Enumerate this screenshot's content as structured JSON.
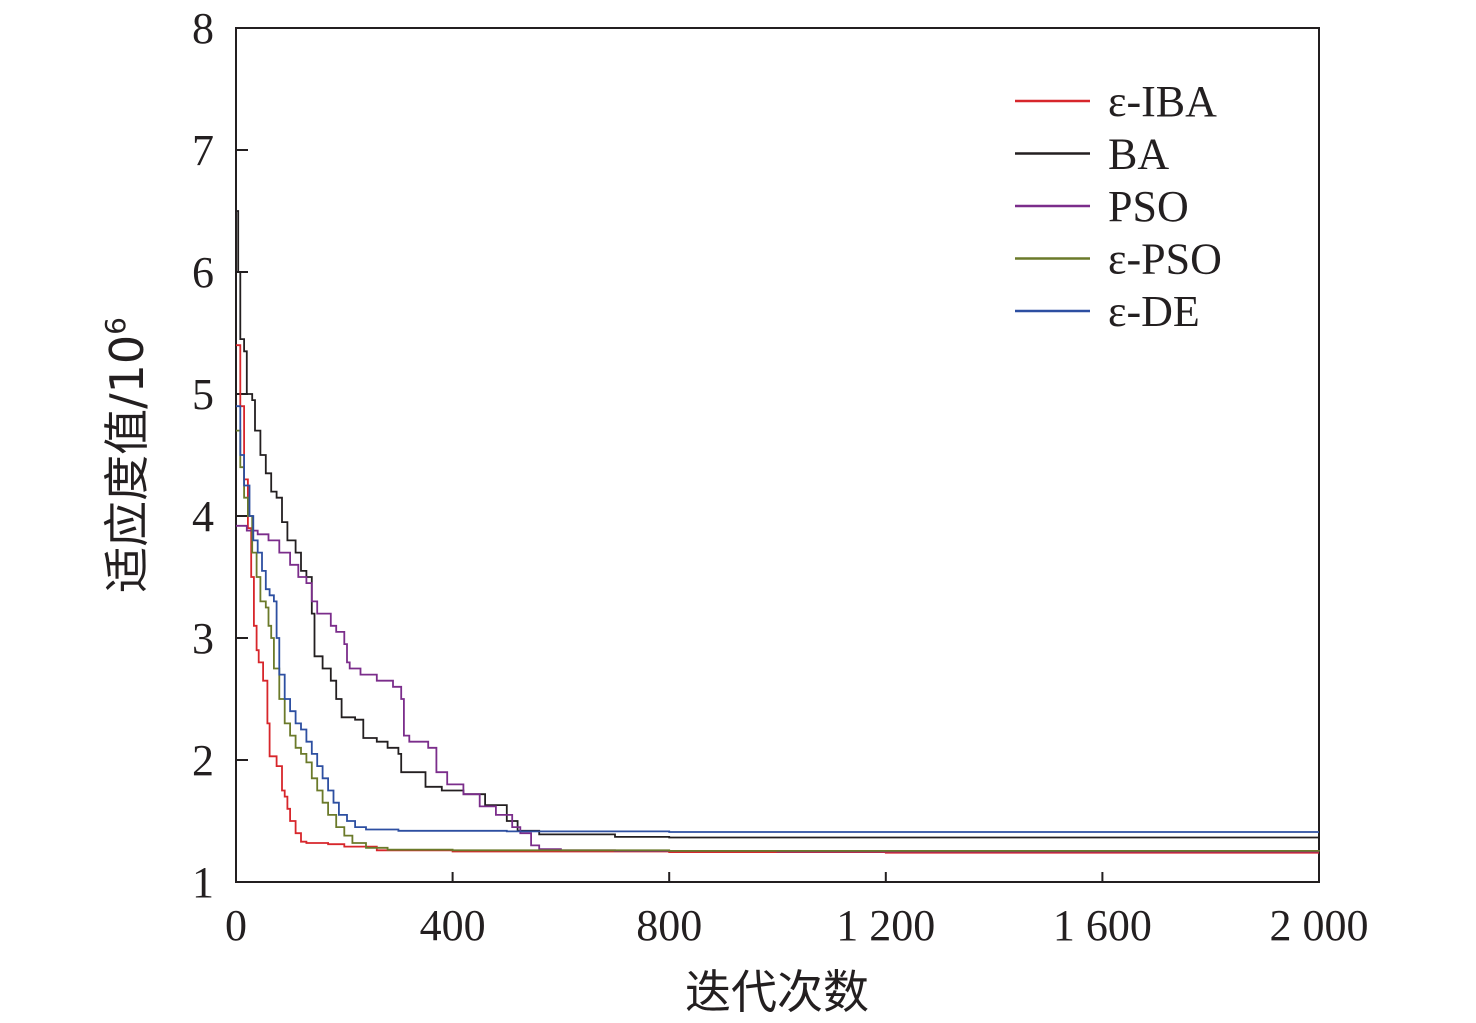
{
  "chart_data": {
    "type": "line",
    "title": "",
    "xlabel": "迭代次数",
    "ylabel": "适应度值/10",
    "ylabel_sup": "6",
    "xlim": [
      0,
      2000
    ],
    "ylim": [
      1,
      8
    ],
    "xticks": [
      0,
      400,
      800,
      1200,
      1600,
      2000
    ],
    "xtick_labels": [
      "0",
      "400",
      "800",
      "1 200",
      "1 600",
      "2 000"
    ],
    "yticks": [
      1,
      2,
      3,
      4,
      5,
      6,
      7,
      8
    ],
    "ytick_labels": [
      "1",
      "2",
      "3",
      "4",
      "5",
      "6",
      "7",
      "8"
    ],
    "grid": false,
    "legend_position": "top-right",
    "series": [
      {
        "name": "ε-IBA",
        "color": "#d7262b",
        "points": [
          [
            0,
            5.4
          ],
          [
            8,
            4.9
          ],
          [
            15,
            4.3
          ],
          [
            22,
            3.9
          ],
          [
            28,
            3.5
          ],
          [
            33,
            3.1
          ],
          [
            38,
            2.9
          ],
          [
            42,
            2.8
          ],
          [
            50,
            2.65
          ],
          [
            58,
            2.3
          ],
          [
            62,
            2.03
          ],
          [
            75,
            1.95
          ],
          [
            85,
            1.75
          ],
          [
            90,
            1.7
          ],
          [
            95,
            1.6
          ],
          [
            100,
            1.5
          ],
          [
            110,
            1.4
          ],
          [
            120,
            1.33
          ],
          [
            130,
            1.32
          ],
          [
            170,
            1.31
          ],
          [
            200,
            1.29
          ],
          [
            260,
            1.26
          ],
          [
            400,
            1.25
          ],
          [
            800,
            1.245
          ],
          [
            1200,
            1.24
          ],
          [
            2000,
            1.24
          ]
        ]
      },
      {
        "name": "BA",
        "color": "#231f20",
        "points": [
          [
            0,
            6.5
          ],
          [
            4,
            6.0
          ],
          [
            8,
            5.45
          ],
          [
            15,
            5.35
          ],
          [
            20,
            5.0
          ],
          [
            30,
            4.95
          ],
          [
            35,
            4.7
          ],
          [
            45,
            4.5
          ],
          [
            55,
            4.35
          ],
          [
            65,
            4.2
          ],
          [
            75,
            4.15
          ],
          [
            85,
            3.95
          ],
          [
            95,
            3.8
          ],
          [
            110,
            3.7
          ],
          [
            120,
            3.55
          ],
          [
            130,
            3.5
          ],
          [
            140,
            3.2
          ],
          [
            145,
            2.85
          ],
          [
            160,
            2.75
          ],
          [
            175,
            2.65
          ],
          [
            185,
            2.5
          ],
          [
            195,
            2.35
          ],
          [
            220,
            2.33
          ],
          [
            235,
            2.18
          ],
          [
            260,
            2.15
          ],
          [
            280,
            2.1
          ],
          [
            300,
            2.05
          ],
          [
            305,
            1.9
          ],
          [
            330,
            1.9
          ],
          [
            350,
            1.78
          ],
          [
            380,
            1.75
          ],
          [
            420,
            1.72
          ],
          [
            460,
            1.63
          ],
          [
            500,
            1.5
          ],
          [
            520,
            1.42
          ],
          [
            560,
            1.39
          ],
          [
            700,
            1.37
          ],
          [
            800,
            1.365
          ],
          [
            2000,
            1.365
          ]
        ]
      },
      {
        "name": "PSO",
        "color": "#7b2d8b",
        "points": [
          [
            0,
            3.92
          ],
          [
            20,
            3.88
          ],
          [
            40,
            3.85
          ],
          [
            60,
            3.8
          ],
          [
            80,
            3.7
          ],
          [
            100,
            3.6
          ],
          [
            115,
            3.5
          ],
          [
            130,
            3.45
          ],
          [
            140,
            3.3
          ],
          [
            150,
            3.2
          ],
          [
            175,
            3.1
          ],
          [
            185,
            3.05
          ],
          [
            200,
            2.95
          ],
          [
            205,
            2.8
          ],
          [
            210,
            2.75
          ],
          [
            230,
            2.7
          ],
          [
            260,
            2.65
          ],
          [
            290,
            2.6
          ],
          [
            305,
            2.5
          ],
          [
            310,
            2.2
          ],
          [
            320,
            2.15
          ],
          [
            355,
            2.1
          ],
          [
            370,
            1.9
          ],
          [
            390,
            1.8
          ],
          [
            420,
            1.72
          ],
          [
            450,
            1.62
          ],
          [
            480,
            1.55
          ],
          [
            510,
            1.45
          ],
          [
            525,
            1.4
          ],
          [
            545,
            1.3
          ],
          [
            560,
            1.27
          ],
          [
            600,
            1.26
          ],
          [
            700,
            1.255
          ],
          [
            1000,
            1.25
          ],
          [
            2000,
            1.25
          ]
        ]
      },
      {
        "name": "ε-PSO",
        "color": "#6b7a2a",
        "points": [
          [
            0,
            4.7
          ],
          [
            8,
            4.4
          ],
          [
            15,
            4.15
          ],
          [
            22,
            4.0
          ],
          [
            30,
            3.7
          ],
          [
            38,
            3.5
          ],
          [
            45,
            3.3
          ],
          [
            55,
            3.25
          ],
          [
            60,
            3.1
          ],
          [
            65,
            3.0
          ],
          [
            70,
            2.75
          ],
          [
            80,
            2.5
          ],
          [
            90,
            2.3
          ],
          [
            100,
            2.2
          ],
          [
            110,
            2.1
          ],
          [
            120,
            2.05
          ],
          [
            130,
            1.98
          ],
          [
            140,
            1.85
          ],
          [
            150,
            1.75
          ],
          [
            160,
            1.65
          ],
          [
            170,
            1.55
          ],
          [
            185,
            1.45
          ],
          [
            200,
            1.38
          ],
          [
            215,
            1.32
          ],
          [
            240,
            1.28
          ],
          [
            280,
            1.265
          ],
          [
            400,
            1.26
          ],
          [
            800,
            1.255
          ],
          [
            2000,
            1.25
          ]
        ]
      },
      {
        "name": "ε-DE",
        "color": "#2d4fa1",
        "points": [
          [
            0,
            4.9
          ],
          [
            8,
            4.5
          ],
          [
            15,
            4.25
          ],
          [
            25,
            4.0
          ],
          [
            32,
            3.8
          ],
          [
            40,
            3.7
          ],
          [
            48,
            3.55
          ],
          [
            55,
            3.4
          ],
          [
            62,
            3.35
          ],
          [
            70,
            3.3
          ],
          [
            75,
            3.0
          ],
          [
            80,
            2.7
          ],
          [
            90,
            2.5
          ],
          [
            100,
            2.4
          ],
          [
            110,
            2.3
          ],
          [
            120,
            2.25
          ],
          [
            130,
            2.15
          ],
          [
            140,
            2.05
          ],
          [
            150,
            1.95
          ],
          [
            160,
            1.85
          ],
          [
            170,
            1.75
          ],
          [
            180,
            1.65
          ],
          [
            190,
            1.55
          ],
          [
            205,
            1.5
          ],
          [
            220,
            1.45
          ],
          [
            240,
            1.43
          ],
          [
            300,
            1.42
          ],
          [
            500,
            1.415
          ],
          [
            800,
            1.41
          ],
          [
            2000,
            1.41
          ]
        ]
      }
    ]
  }
}
